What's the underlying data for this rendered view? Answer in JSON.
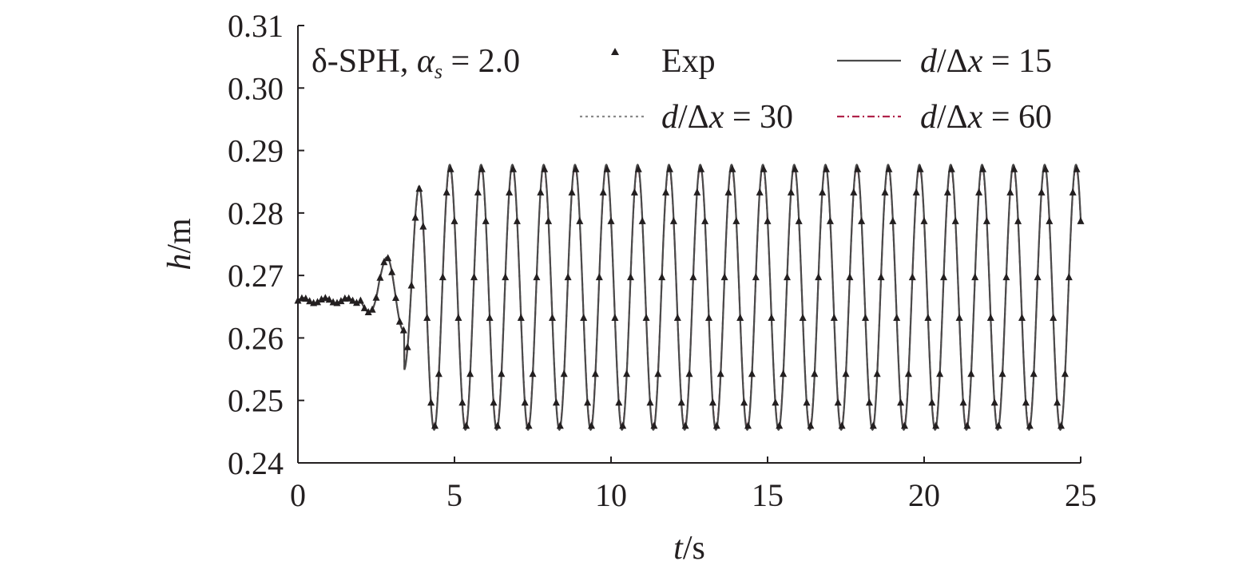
{
  "chart_data": {
    "type": "line",
    "xlabel": {
      "var": "t",
      "unit": "/s"
    },
    "ylabel": {
      "var": "h",
      "unit": "/m"
    },
    "xlim": [
      0,
      25
    ],
    "ylim": [
      0.24,
      0.31
    ],
    "xticks": [
      "0",
      "5",
      "10",
      "15",
      "20",
      "25"
    ],
    "yticks": [
      "0.24",
      "0.25",
      "0.26",
      "0.27",
      "0.28",
      "0.29",
      "0.30",
      "0.31"
    ],
    "grid": false,
    "legend": {
      "placement": "top",
      "heading": {
        "prefix": "δ-SPH, ",
        "symbol": "α",
        "subscript": "s",
        "suffix": " = 2.0"
      }
    },
    "wave": {
      "still_level": 0.266,
      "steady_mean": 0.2665,
      "steady_amplitude": 0.021,
      "period_s": 1.0
    },
    "series": [
      {
        "name": "Exp",
        "style": "markers",
        "marker": "triangle",
        "color": "#231f20",
        "sample_interval_s": 0.125,
        "amplitude_scale": 0.99
      },
      {
        "name": "d/Δx = 15",
        "label": {
          "a": "d",
          "b": "/Δ",
          "c": "x",
          "d": " = 15"
        },
        "style": "solid",
        "color": "#4a4a4a",
        "amplitude_scale": 1.01
      },
      {
        "name": "d/Δx = 30",
        "label": {
          "a": "d",
          "b": "/Δ",
          "c": "x",
          "d": " = 30"
        },
        "style": "dotted",
        "color": "#8a8a8a",
        "amplitude_scale": 1.0
      },
      {
        "name": "d/Δx = 60",
        "label": {
          "a": "d",
          "b": "/Δ",
          "c": "x",
          "d": " = 60"
        },
        "style": "dashdot",
        "color": "#b0224a",
        "amplitude_scale": 0.995
      }
    ]
  }
}
